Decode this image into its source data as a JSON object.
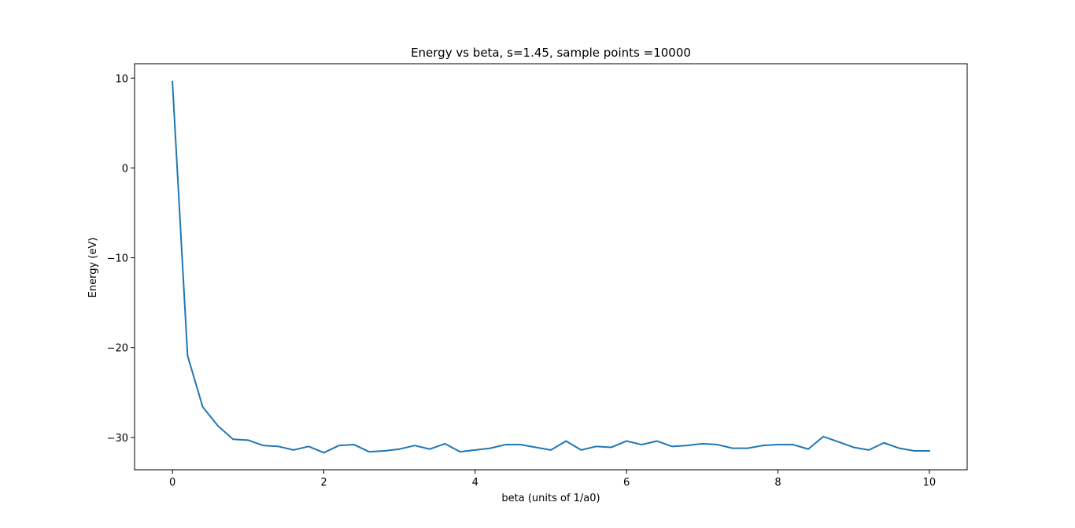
{
  "chart_data": {
    "type": "line",
    "title": "Energy vs beta, s=1.45, sample points =10000",
    "xlabel": "beta (units of 1/a0)",
    "ylabel": "Energy (eV)",
    "xlim": [
      -0.5,
      10.5
    ],
    "ylim": [
      -33.6,
      11.6
    ],
    "x_ticks": [
      0,
      2,
      4,
      6,
      8,
      10
    ],
    "x_tick_labels": [
      "0",
      "2",
      "4",
      "6",
      "8",
      "10"
    ],
    "y_ticks": [
      10,
      0,
      -10,
      -20,
      -30
    ],
    "y_tick_labels": [
      "10",
      "0",
      "−10",
      "−20",
      "−30"
    ],
    "grid": false,
    "series": [
      {
        "color": "#1f77b4",
        "x": [
          0.0,
          0.2,
          0.4,
          0.6,
          0.8,
          1.0,
          1.2,
          1.4,
          1.6,
          1.8,
          2.0,
          2.2,
          2.4,
          2.6,
          2.8,
          3.0,
          3.2,
          3.4,
          3.6,
          3.8,
          4.0,
          4.2,
          4.4,
          4.6,
          4.8,
          5.0,
          5.2,
          5.4,
          5.6,
          5.8,
          6.0,
          6.2,
          6.4,
          6.6,
          6.8,
          7.0,
          7.2,
          7.4,
          7.6,
          7.8,
          8.0,
          8.2,
          8.4,
          8.6,
          8.8,
          9.0,
          9.2,
          9.4,
          9.6,
          9.8,
          10.0
        ],
        "y": [
          9.6,
          -20.9,
          -26.6,
          -28.7,
          -30.2,
          -30.3,
          -30.9,
          -31.0,
          -31.4,
          -31.0,
          -31.7,
          -30.9,
          -30.8,
          -31.6,
          -31.5,
          -31.3,
          -30.9,
          -31.3,
          -30.7,
          -31.6,
          -31.4,
          -31.2,
          -30.8,
          -30.8,
          -31.1,
          -31.4,
          -30.4,
          -31.4,
          -31.0,
          -31.1,
          -30.4,
          -30.8,
          -30.4,
          -31.0,
          -30.9,
          -30.7,
          -30.8,
          -31.2,
          -31.2,
          -30.9,
          -30.8,
          -30.8,
          -31.3,
          -29.9,
          -30.5,
          -31.1,
          -31.4,
          -30.6,
          -31.2,
          -31.5,
          -31.5
        ]
      }
    ]
  }
}
